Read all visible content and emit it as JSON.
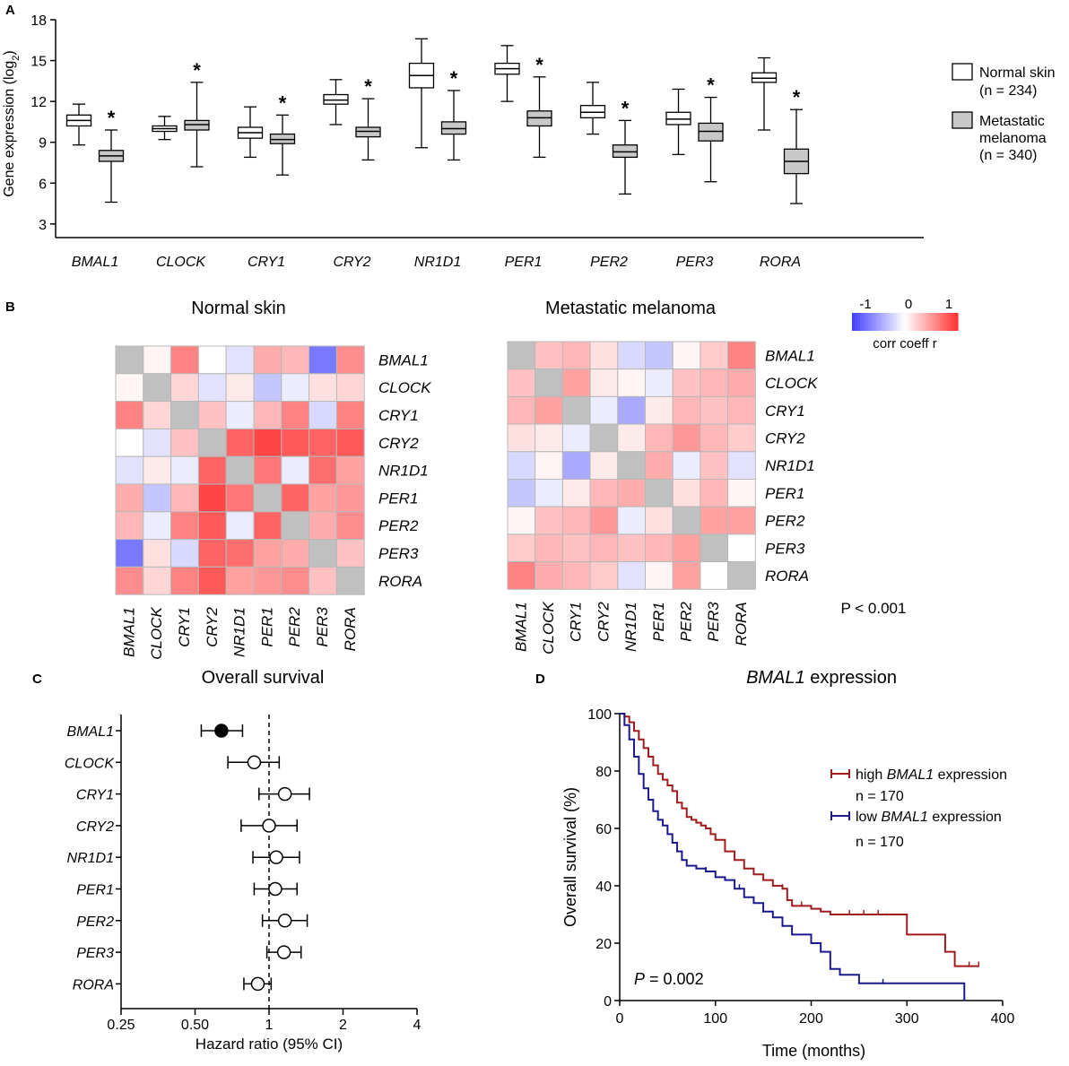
{
  "panels": {
    "A": {
      "letter": "A"
    },
    "B": {
      "letter": "B",
      "left_title": "Normal skin",
      "right_title": "Metastatic melanoma",
      "p_value": "P < 0.001",
      "colorbar_label": "corr coeff r",
      "colorbar_ticks": [
        "-1",
        "0",
        "1"
      ]
    },
    "C": {
      "letter": "C",
      "title": "Overall survival",
      "xlabel": "Hazard ratio (95% CI)"
    },
    "D": {
      "letter": "D",
      "title_gene": "BMAL1",
      "title_rest": "expression",
      "p_label": "P",
      "p_rest": " = 0.002",
      "legend_high_pre": "high ",
      "legend_high_gene": "BMAL1",
      "legend_high_post": " expression",
      "legend_high_n": "n = 170",
      "legend_low_pre": "low ",
      "legend_low_gene": "BMAL1",
      "legend_low_post": " expression",
      "legend_low_n": "n = 170"
    }
  },
  "colors": {
    "normal_fill": "#ffffff",
    "melanoma_fill": "#c8c8c8",
    "high_line": "#a01c1c",
    "low_line": "#1a1a8c",
    "neg": "#4040ff",
    "pos": "#ff3030",
    "diag": "#c0c0c0"
  },
  "chart_data": [
    {
      "type": "box",
      "ylabel": "Gene expression (log2)",
      "ylim": [
        2,
        18
      ],
      "yticks": [
        "3",
        "6",
        "9",
        "12",
        "15",
        "18"
      ],
      "categories": [
        "BMAL1",
        "CLOCK",
        "CRY1",
        "CRY2",
        "NR1D1",
        "PER1",
        "PER2",
        "PER3",
        "RORA"
      ],
      "significance": [
        "*",
        "*",
        "*",
        "*",
        "*",
        "*",
        "*",
        "*",
        "*"
      ],
      "legend": [
        "Normal skin",
        "(n = 234)",
        "Metastatic",
        "melanoma",
        "(n = 340)"
      ],
      "series": [
        {
          "name": "Normal skin",
          "n": 234,
          "boxes": [
            [
              8.8,
              10.2,
              10.6,
              11.0,
              11.8
            ],
            [
              9.2,
              9.8,
              10.0,
              10.2,
              10.9
            ],
            [
              7.9,
              9.3,
              9.7,
              10.1,
              11.6
            ],
            [
              10.3,
              11.8,
              12.1,
              12.5,
              13.6
            ],
            [
              8.6,
              13.0,
              13.9,
              14.8,
              16.6
            ],
            [
              12.0,
              14.0,
              14.4,
              14.8,
              16.1
            ],
            [
              9.6,
              10.8,
              11.2,
              11.7,
              13.4
            ],
            [
              8.1,
              10.3,
              10.7,
              11.2,
              12.9
            ],
            [
              9.9,
              13.4,
              13.7,
              14.1,
              15.2
            ]
          ]
        },
        {
          "name": "Metastatic melanoma",
          "n": 340,
          "boxes": [
            [
              4.6,
              7.6,
              8.0,
              8.4,
              9.9
            ],
            [
              7.2,
              9.9,
              10.3,
              10.6,
              13.4
            ],
            [
              6.6,
              8.9,
              9.2,
              9.6,
              11.0
            ],
            [
              7.7,
              9.4,
              9.8,
              10.1,
              12.2
            ],
            [
              7.7,
              9.6,
              10.0,
              10.5,
              12.8
            ],
            [
              7.9,
              10.2,
              10.8,
              11.3,
              13.8
            ],
            [
              5.2,
              7.9,
              8.3,
              8.8,
              10.6
            ],
            [
              6.1,
              9.1,
              9.8,
              10.4,
              12.3
            ],
            [
              4.5,
              6.7,
              7.6,
              8.5,
              11.4
            ]
          ]
        }
      ]
    },
    {
      "type": "heatmap",
      "title": "Normal skin",
      "labels": [
        "BMAL1",
        "CLOCK",
        "CRY1",
        "CRY2",
        "NR1D1",
        "PER1",
        "PER2",
        "PER3",
        "RORA"
      ],
      "values": [
        [
          null,
          0.05,
          0.6,
          0.0,
          -0.15,
          0.4,
          0.35,
          -0.7,
          0.55
        ],
        [
          0.05,
          null,
          0.2,
          -0.15,
          0.1,
          -0.3,
          -0.1,
          0.15,
          0.2
        ],
        [
          0.6,
          0.2,
          null,
          0.3,
          -0.1,
          0.35,
          0.6,
          -0.2,
          0.6
        ],
        [
          0.0,
          -0.15,
          0.3,
          null,
          0.75,
          0.9,
          0.8,
          0.75,
          0.8
        ],
        [
          -0.15,
          0.1,
          -0.1,
          0.75,
          null,
          0.65,
          -0.1,
          0.7,
          0.45
        ],
        [
          0.4,
          -0.3,
          0.35,
          0.9,
          0.65,
          null,
          0.75,
          0.45,
          0.5
        ],
        [
          0.35,
          -0.1,
          0.6,
          0.8,
          -0.1,
          0.75,
          null,
          0.4,
          0.55
        ],
        [
          -0.7,
          0.15,
          -0.2,
          0.75,
          0.7,
          0.45,
          0.4,
          null,
          0.3
        ],
        [
          0.55,
          0.2,
          0.6,
          0.8,
          0.45,
          0.5,
          0.55,
          0.3,
          null
        ]
      ]
    },
    {
      "type": "heatmap",
      "title": "Metastatic melanoma",
      "labels": [
        "BMAL1",
        "CLOCK",
        "CRY1",
        "CRY2",
        "NR1D1",
        "PER1",
        "PER2",
        "PER3",
        "RORA"
      ],
      "values": [
        [
          null,
          0.3,
          0.35,
          0.15,
          -0.2,
          -0.3,
          0.05,
          0.25,
          0.6
        ],
        [
          0.3,
          null,
          0.45,
          0.1,
          0.05,
          -0.1,
          0.3,
          0.35,
          0.4
        ],
        [
          0.35,
          0.45,
          null,
          -0.1,
          -0.45,
          0.1,
          0.35,
          0.3,
          0.35
        ],
        [
          0.15,
          0.1,
          -0.1,
          null,
          0.1,
          0.35,
          0.5,
          0.35,
          0.25
        ],
        [
          -0.2,
          0.05,
          -0.45,
          0.1,
          null,
          0.4,
          -0.1,
          0.3,
          -0.15
        ],
        [
          -0.3,
          -0.1,
          0.1,
          0.35,
          0.4,
          null,
          0.15,
          0.35,
          0.05
        ],
        [
          0.05,
          0.3,
          0.35,
          0.5,
          -0.1,
          0.15,
          null,
          0.45,
          0.45
        ],
        [
          0.25,
          0.35,
          0.3,
          0.35,
          0.3,
          0.35,
          0.45,
          null,
          0.0
        ],
        [
          0.6,
          0.4,
          0.35,
          0.25,
          -0.15,
          0.05,
          0.45,
          0.0,
          null
        ]
      ]
    },
    {
      "type": "forest",
      "title": "Overall survival",
      "xlabel": "Hazard ratio (95% CI)",
      "xscale": "log2",
      "xlim": [
        0.25,
        4
      ],
      "xticks": [
        "0.25",
        "0.50",
        "1",
        "2",
        "4"
      ],
      "categories": [
        "BMAL1",
        "CLOCK",
        "CRY1",
        "CRY2",
        "NR1D1",
        "PER1",
        "PER2",
        "PER3",
        "RORA"
      ],
      "hr": [
        0.64,
        0.87,
        1.16,
        1.0,
        1.07,
        1.06,
        1.16,
        1.15,
        0.9
      ],
      "ci_low": [
        0.53,
        0.68,
        0.91,
        0.77,
        0.86,
        0.87,
        0.94,
        0.98,
        0.79
      ],
      "ci_high": [
        0.78,
        1.1,
        1.46,
        1.3,
        1.33,
        1.3,
        1.43,
        1.35,
        1.02
      ],
      "significant": [
        true,
        false,
        false,
        false,
        false,
        false,
        false,
        false,
        false
      ]
    },
    {
      "type": "line",
      "title": "BMAL1 expression",
      "xlabel": "Time (months)",
      "ylabel": "Overall survival (%)",
      "xlim": [
        0,
        400
      ],
      "ylim": [
        0,
        100
      ],
      "xticks": [
        "0",
        "100",
        "200",
        "300",
        "400"
      ],
      "yticks": [
        "0",
        "20",
        "40",
        "60",
        "80",
        "100"
      ],
      "p_value": "P = 0.002",
      "series": [
        {
          "name": "high BMAL1 expression",
          "n": 170,
          "x": [
            0,
            5,
            10,
            15,
            20,
            25,
            30,
            35,
            40,
            45,
            50,
            55,
            60,
            65,
            70,
            75,
            80,
            85,
            90,
            95,
            100,
            110,
            120,
            130,
            140,
            150,
            160,
            170,
            175,
            180,
            200,
            210,
            220,
            240,
            250,
            270,
            300,
            340,
            350,
            375
          ],
          "y": [
            100,
            99,
            97,
            94,
            91,
            88,
            85,
            82,
            79,
            77,
            75,
            73,
            69,
            67,
            64,
            63,
            62,
            61,
            60,
            58,
            56,
            52,
            49,
            46,
            44,
            42,
            40,
            39,
            35,
            33,
            32,
            31,
            30,
            30,
            30,
            30,
            23,
            17,
            12,
            12
          ],
          "censor_x": [
            120,
            170,
            190,
            240,
            255,
            270,
            365,
            375
          ]
        },
        {
          "name": "low BMAL1 expression",
          "n": 170,
          "x": [
            0,
            5,
            10,
            15,
            20,
            25,
            30,
            35,
            40,
            45,
            50,
            55,
            60,
            65,
            70,
            80,
            90,
            100,
            110,
            120,
            130,
            140,
            150,
            160,
            170,
            180,
            200,
            210,
            220,
            230,
            250,
            275,
            300,
            360
          ],
          "y": [
            100,
            96,
            91,
            85,
            79,
            74,
            70,
            66,
            63,
            61,
            58,
            55,
            52,
            49,
            47,
            46,
            45,
            43,
            42,
            39,
            36,
            34,
            31,
            29,
            26,
            23,
            20,
            17,
            11,
            9,
            6,
            6,
            6,
            0
          ],
          "censor_x": [
            90,
            125,
            150,
            170,
            275
          ]
        }
      ]
    }
  ]
}
